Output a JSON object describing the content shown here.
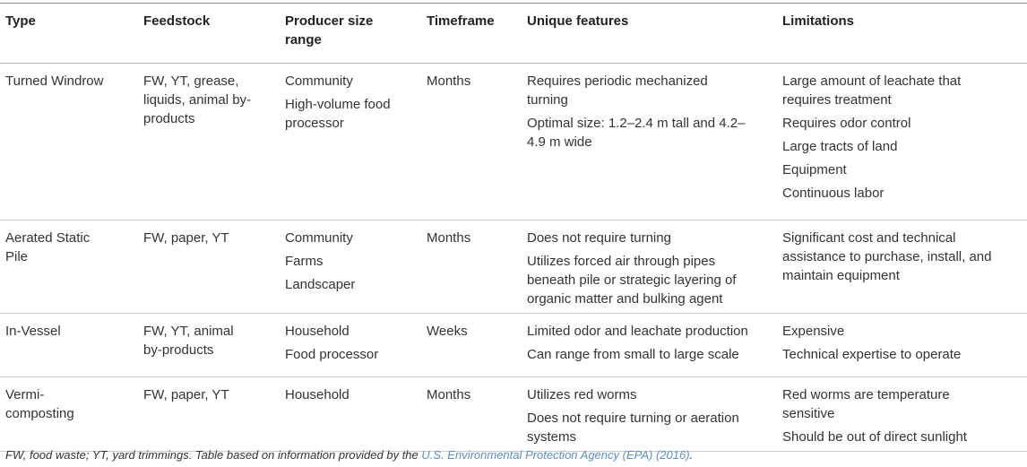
{
  "table": {
    "headers": [
      "Type",
      "Feedstock",
      "Producer size range",
      "Timeframe",
      "Unique features",
      "Limitations"
    ],
    "rows": [
      [
        [
          "Turned Windrow"
        ],
        [
          "FW, YT, grease, liquids, animal by-products"
        ],
        [
          "Community",
          "High-volume food processor"
        ],
        [
          "Months"
        ],
        [
          "Requires periodic mechanized turning",
          "Optimal size: 1.2–2.4 m tall and 4.2–4.9 m wide"
        ],
        [
          "Large amount of leachate that requires treatment",
          "Requires odor control",
          "Large tracts of land",
          "Equipment",
          "Continuous labor"
        ]
      ],
      [
        [
          "Aerated Static Pile"
        ],
        [
          "FW, paper, YT"
        ],
        [
          "Community",
          "Farms",
          "Landscaper"
        ],
        [
          "Months"
        ],
        [
          "Does not require turning",
          "Utilizes forced air through pipes beneath pile or strategic layering of organic matter and bulking agent"
        ],
        [
          "Significant cost and technical assistance to purchase, install, and maintain equipment"
        ]
      ],
      [
        [
          "In-Vessel"
        ],
        [
          "FW, YT, animal by-products"
        ],
        [
          "Household",
          "Food processor"
        ],
        [
          "Weeks"
        ],
        [
          "Limited odor and leachate production",
          "Can range from small to large scale"
        ],
        [
          "Expensive",
          "Technical expertise to operate"
        ]
      ],
      [
        [
          "Vermi-composting"
        ],
        [
          "FW, paper, YT"
        ],
        [
          "Household"
        ],
        [
          "Months"
        ],
        [
          "Utilizes red worms",
          "Does not require turning or aeration systems"
        ],
        [
          "Red worms are temperature sensitive",
          "Should be out of direct sunlight"
        ]
      ]
    ]
  },
  "footnote": {
    "text": "FW, food waste; YT, yard trimmings. Table based on information provided by the ",
    "link": "U.S. Environmental Protection Agency (EPA) (2016)",
    "end": "."
  }
}
